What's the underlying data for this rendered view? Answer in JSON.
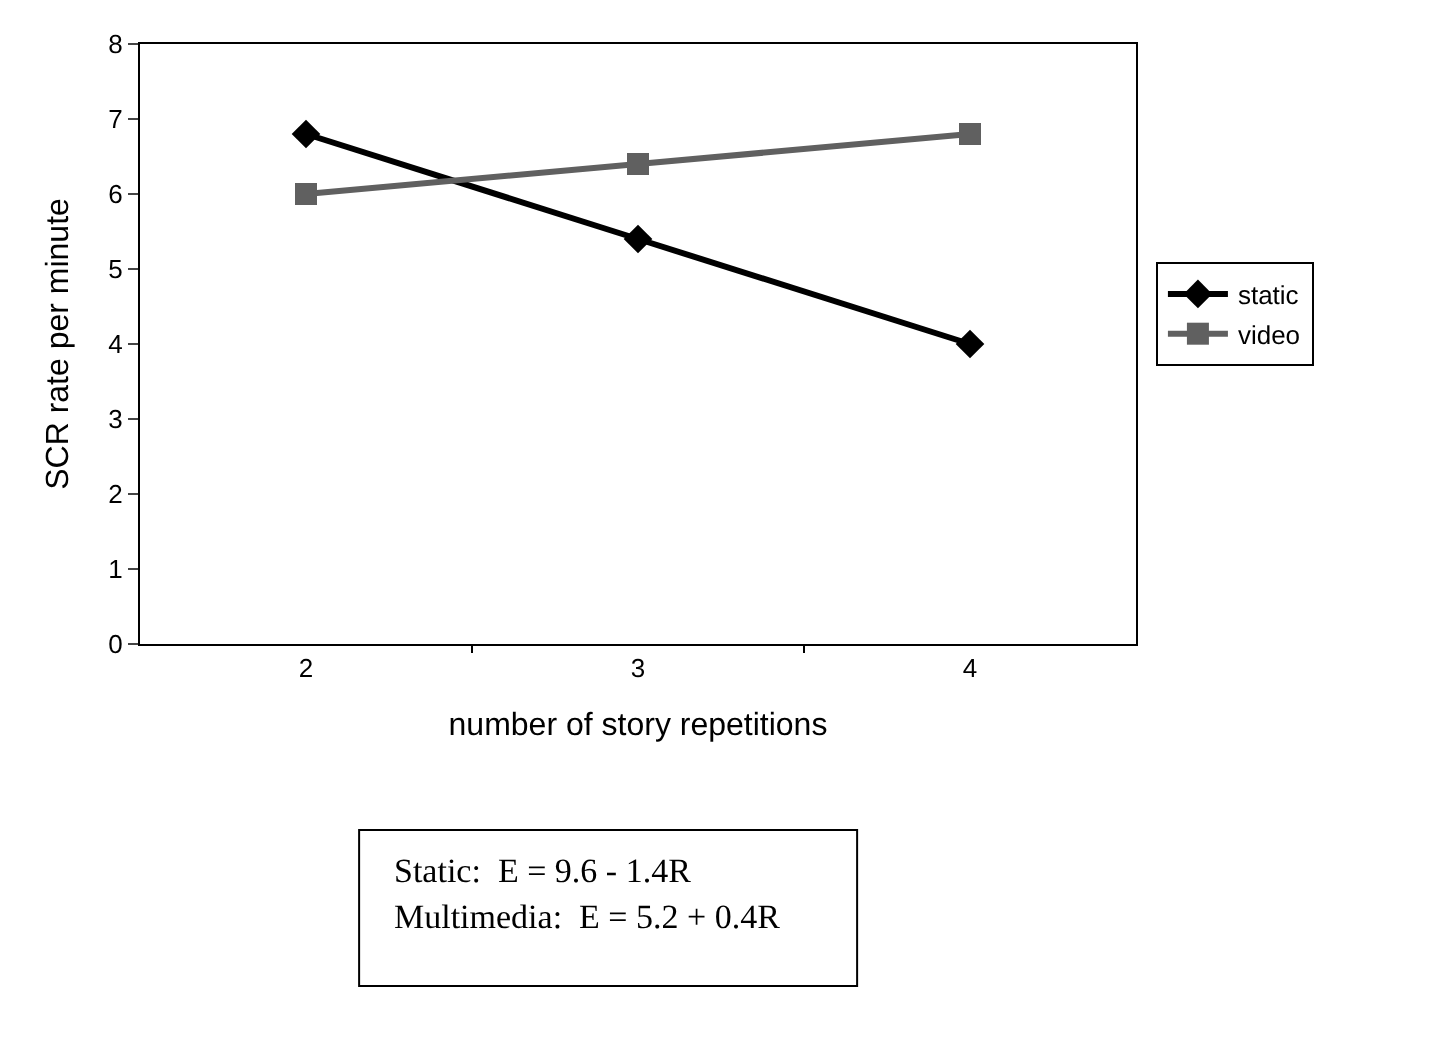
{
  "chart_data": {
    "type": "line",
    "xlabel": "number of story repetitions",
    "ylabel": "SCR rate per minute",
    "categories": [
      "2",
      "3",
      "4"
    ],
    "series": [
      {
        "name": "static",
        "color": "#000000",
        "marker": "diamond",
        "values": [
          6.8,
          5.4,
          4.0
        ]
      },
      {
        "name": "video",
        "color": "#606060",
        "marker": "square",
        "values": [
          6.0,
          6.4,
          6.8
        ]
      }
    ],
    "ylim": [
      0,
      8
    ],
    "yticks": [
      0,
      1,
      2,
      3,
      4,
      5,
      6,
      7,
      8
    ],
    "legend": "right",
    "line_style": "solid",
    "annotations": [
      "Static:  E = 9.6 - 1.4R",
      "Multimedia:  E = 5.2 + 0.4R"
    ]
  }
}
